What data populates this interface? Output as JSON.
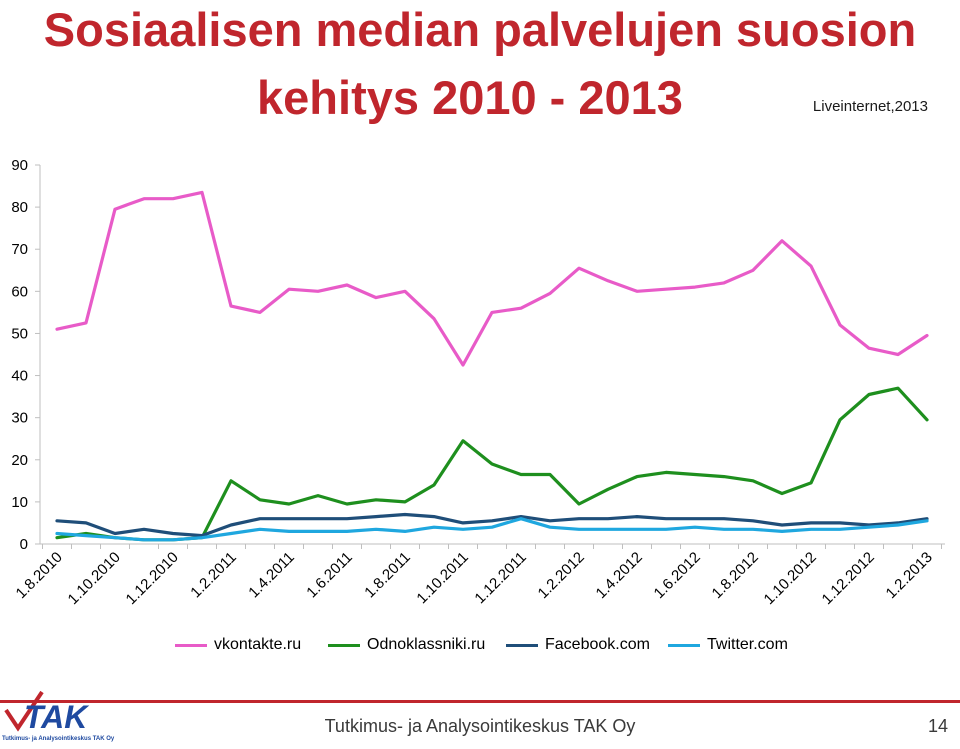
{
  "header": {
    "title_line1": "Sosiaalisen median palvelujen suosion",
    "title_line2": "kehitys 2010 - 2013",
    "source": "Liveinternet,2013"
  },
  "chart_data": {
    "type": "line",
    "x": [
      "1.8.2010",
      "1.9.2010",
      "1.10.2010",
      "1.11.2010",
      "1.12.2010",
      "1.1.2011",
      "1.2.2011",
      "1.3.2011",
      "1.4.2011",
      "1.5.2011",
      "1.6.2011",
      "1.7.2011",
      "1.8.2011",
      "1.9.2011",
      "1.10.2011",
      "1.11.2011",
      "1.12.2011",
      "1.1.2012",
      "1.2.2012",
      "1.3.2012",
      "1.4.2012",
      "1.5.2012",
      "1.6.2012",
      "1.7.2012",
      "1.8.2012",
      "1.9.2012",
      "1.10.2012",
      "1.11.2012",
      "1.12.2012",
      "1.1.2013",
      "1.2.2013"
    ],
    "x_tick_labels": [
      "1.8.2010",
      "1.10.2010",
      "1.12.2010",
      "1.2.2011",
      "1.4.2011",
      "1.6.2011",
      "1.8.2011",
      "1.10.2011",
      "1.12.2011",
      "1.2.2012",
      "1.4.2012",
      "1.6.2012",
      "1.8.2012",
      "1.10.2012",
      "1.12.2012",
      "1.2.2013"
    ],
    "ylim": [
      0,
      90
    ],
    "yticks": [
      0,
      10,
      20,
      30,
      40,
      50,
      60,
      70,
      80,
      90
    ],
    "grid": "none",
    "legend_position": "bottom",
    "series": [
      {
        "name": "vkontakte.ru",
        "color": "#e85bc8",
        "values": [
          51,
          52.5,
          79.5,
          82,
          82,
          83.5,
          56.5,
          55,
          60.5,
          60,
          61.5,
          58.5,
          60,
          53.5,
          42.5,
          55,
          56,
          59.5,
          65.5,
          62.5,
          60,
          60.5,
          61,
          62,
          65,
          72,
          66,
          52,
          46.5,
          45,
          49.5
        ]
      },
      {
        "name": "Odnoklassniki.ru",
        "color": "#1e8f1e",
        "values": [
          1.5,
          2.5,
          1.5,
          1,
          1,
          1.5,
          15,
          10.5,
          9.5,
          11.5,
          9.5,
          10.5,
          10,
          14,
          24.5,
          19,
          16.5,
          16.5,
          9.5,
          13,
          16,
          17,
          16.5,
          16,
          15,
          12,
          14.5,
          29.5,
          35.5,
          37,
          29.5
        ]
      },
      {
        "name": "Facebook.com",
        "color": "#1f4e79",
        "values": [
          5.5,
          5,
          2.5,
          3.5,
          2.5,
          2,
          4.5,
          6,
          6,
          6,
          6,
          6.5,
          7,
          6.5,
          5,
          5.5,
          6.5,
          5.5,
          6,
          6,
          6.5,
          6,
          6,
          6,
          5.5,
          4.5,
          5,
          5,
          4.5,
          5,
          6
        ]
      },
      {
        "name": "Twitter.com",
        "color": "#1fa7df",
        "values": [
          2.5,
          2,
          1.5,
          1,
          1,
          1.5,
          2.5,
          3.5,
          3,
          3,
          3,
          3.5,
          3,
          4,
          3.5,
          4,
          6,
          4,
          3.5,
          3.5,
          3.5,
          3.5,
          4,
          3.5,
          3.5,
          3,
          3.5,
          3.5,
          4,
          4.5,
          5.5
        ]
      }
    ]
  },
  "footer": {
    "text": "Tutkimus- ja Analysointikeskus TAK Oy",
    "page": "14",
    "logo_text": "TAK",
    "logo_subtext": "Tutkimus- ja Analysointikeskus TAK Oy"
  }
}
